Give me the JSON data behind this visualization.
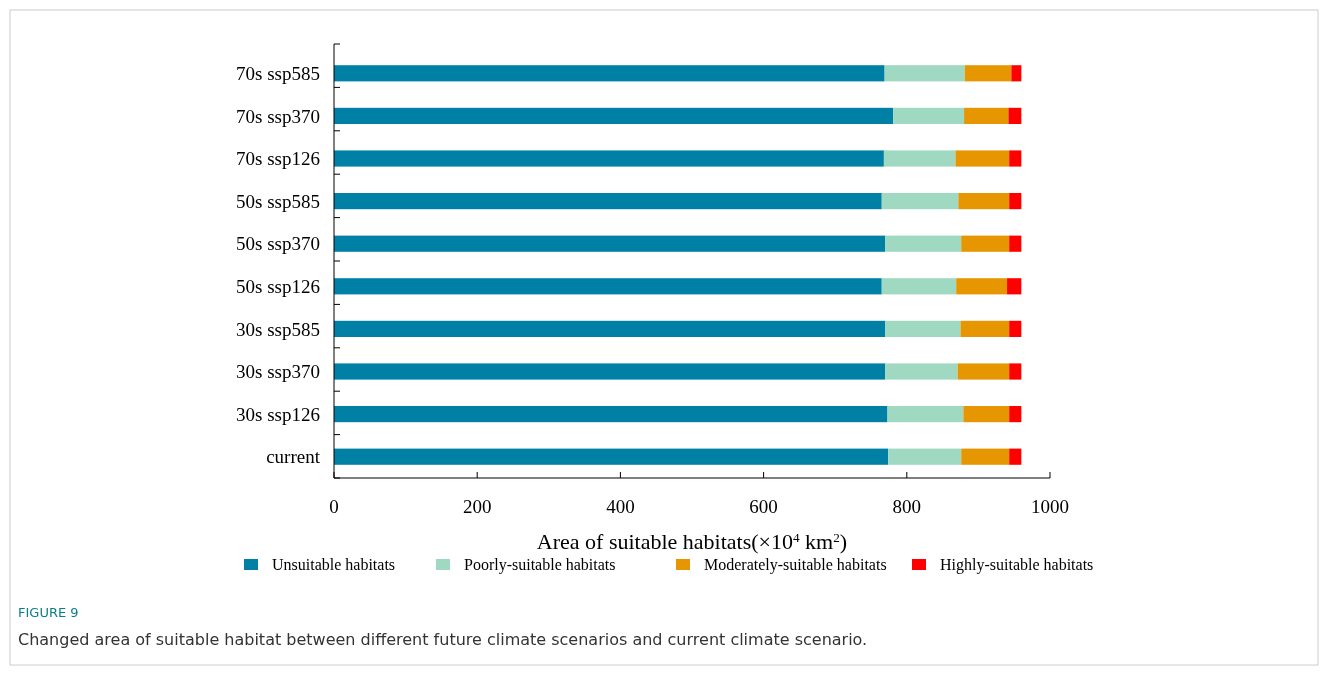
{
  "chart_data": {
    "type": "bar",
    "orientation": "horizontal",
    "stacked": true,
    "xlabel": "Area of suitable habitats(×10$^{4}$ km$^{2}$)",
    "categories": [
      "70s ssp585",
      "70s ssp370",
      "70s ssp126",
      "50s ssp585",
      "50s ssp370",
      "50s ssp126",
      "30s ssp585",
      "30s ssp370",
      "30s ssp126",
      "current"
    ],
    "series": [
      {
        "name": "Unsuitable habitats",
        "color": "#0080a4",
        "values": [
          769,
          781,
          768,
          765,
          770,
          765,
          770,
          770,
          773,
          774
        ]
      },
      {
        "name": "Poorly-suitable habitats",
        "color": "#9fd9c2",
        "values": [
          112,
          99,
          100,
          107,
          106,
          104,
          105,
          101,
          106,
          102
        ]
      },
      {
        "name": "Moderately-suitable habitats",
        "color": "#e69600",
        "values": [
          65,
          62,
          75,
          71,
          67,
          71,
          68,
          72,
          64,
          67
        ]
      },
      {
        "name": "Highly-suitable habitats",
        "color": "#ff0000",
        "values": [
          14,
          18,
          17,
          17,
          17,
          20,
          17,
          17,
          17,
          17
        ]
      }
    ],
    "xlim": [
      0,
      1000
    ],
    "xticks": [
      0,
      200,
      400,
      600,
      800,
      1000
    ],
    "grid": false,
    "legend": "bottom",
    "annotations": [
      "FIGURE 9",
      "Changed area of suitable habitat between different future climate scenarios and current climate scenario."
    ]
  }
}
